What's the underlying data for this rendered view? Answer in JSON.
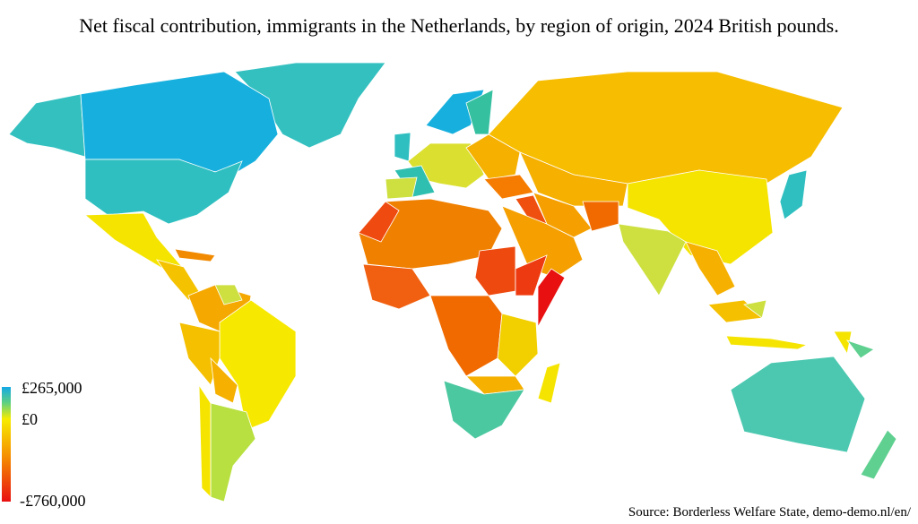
{
  "title": "Net fiscal contribution, immigrants in the Netherlands, by region of origin, 2024 British pounds.",
  "legend": {
    "labels": [
      "£265,000",
      "£0",
      "-£760,000"
    ]
  },
  "source": "Source: Borderless Welfare State, demo-demo.nl/en/"
}
